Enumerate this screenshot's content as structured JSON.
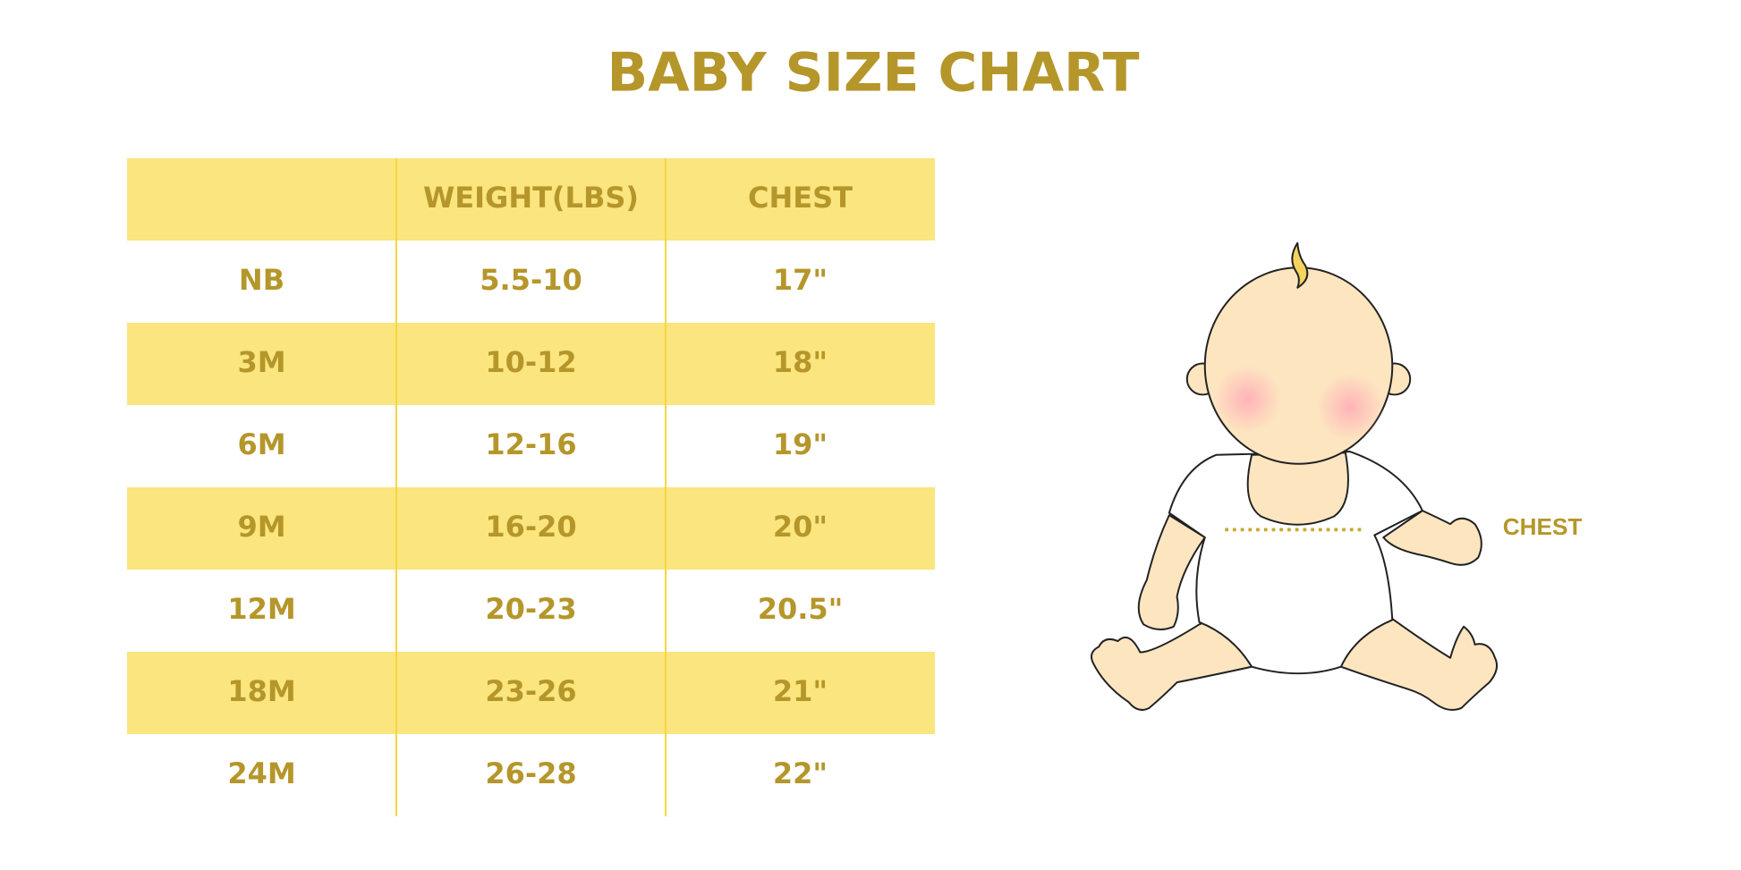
{
  "title": "BABY SIZE CHART",
  "table": {
    "columns": [
      "WEIGHT(LBS)",
      "CHEST"
    ],
    "rows": [
      [
        "NB",
        "5.5-10",
        "17\""
      ],
      [
        "3M",
        "10-12",
        "18\""
      ],
      [
        "6M",
        "12-16",
        "19\""
      ],
      [
        "9M",
        "16-20",
        "20\""
      ],
      [
        "12M",
        "20-23",
        "20.5\""
      ],
      [
        "18M",
        "23-26",
        "21\""
      ],
      [
        "24M",
        "26-28",
        "22\""
      ]
    ]
  },
  "illustration": {
    "label": "CHEST"
  }
}
